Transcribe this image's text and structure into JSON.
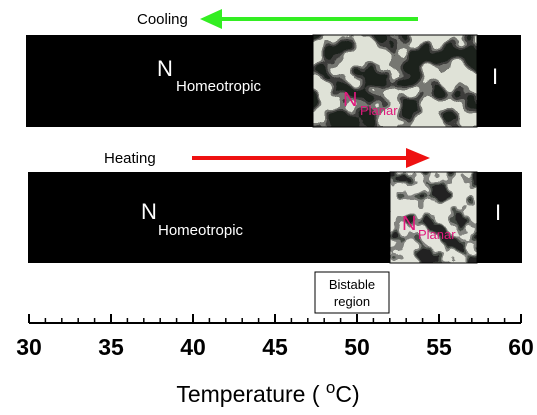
{
  "arrows": {
    "cooling": {
      "label": "Cooling",
      "color": "#33ee22",
      "direction": "left"
    },
    "heating": {
      "label": "Heating",
      "color": "#ee1111",
      "direction": "right"
    }
  },
  "cooling_bar": {
    "homeotropic_label": "N",
    "homeotropic_sub": "Homeotropic",
    "planar_label": "N",
    "planar_sub": "Planar",
    "isotropic_label": "I"
  },
  "heating_bar": {
    "homeotropic_label": "N",
    "homeotropic_sub": "Homeotropic",
    "planar_label": "N",
    "planar_sub": "Planar",
    "isotropic_label": "I"
  },
  "bistable": {
    "line1": "Bistable",
    "line2": "region"
  },
  "axis": {
    "ticks": [
      "30",
      "35",
      "40",
      "45",
      "50",
      "55",
      "60"
    ],
    "label_prefix": "Temperature ( ",
    "label_sup": "o",
    "label_suffix": "C)"
  },
  "colors": {
    "bar": "#000000",
    "planar_text": "#e0197d",
    "label_white": "#ffffff"
  }
}
